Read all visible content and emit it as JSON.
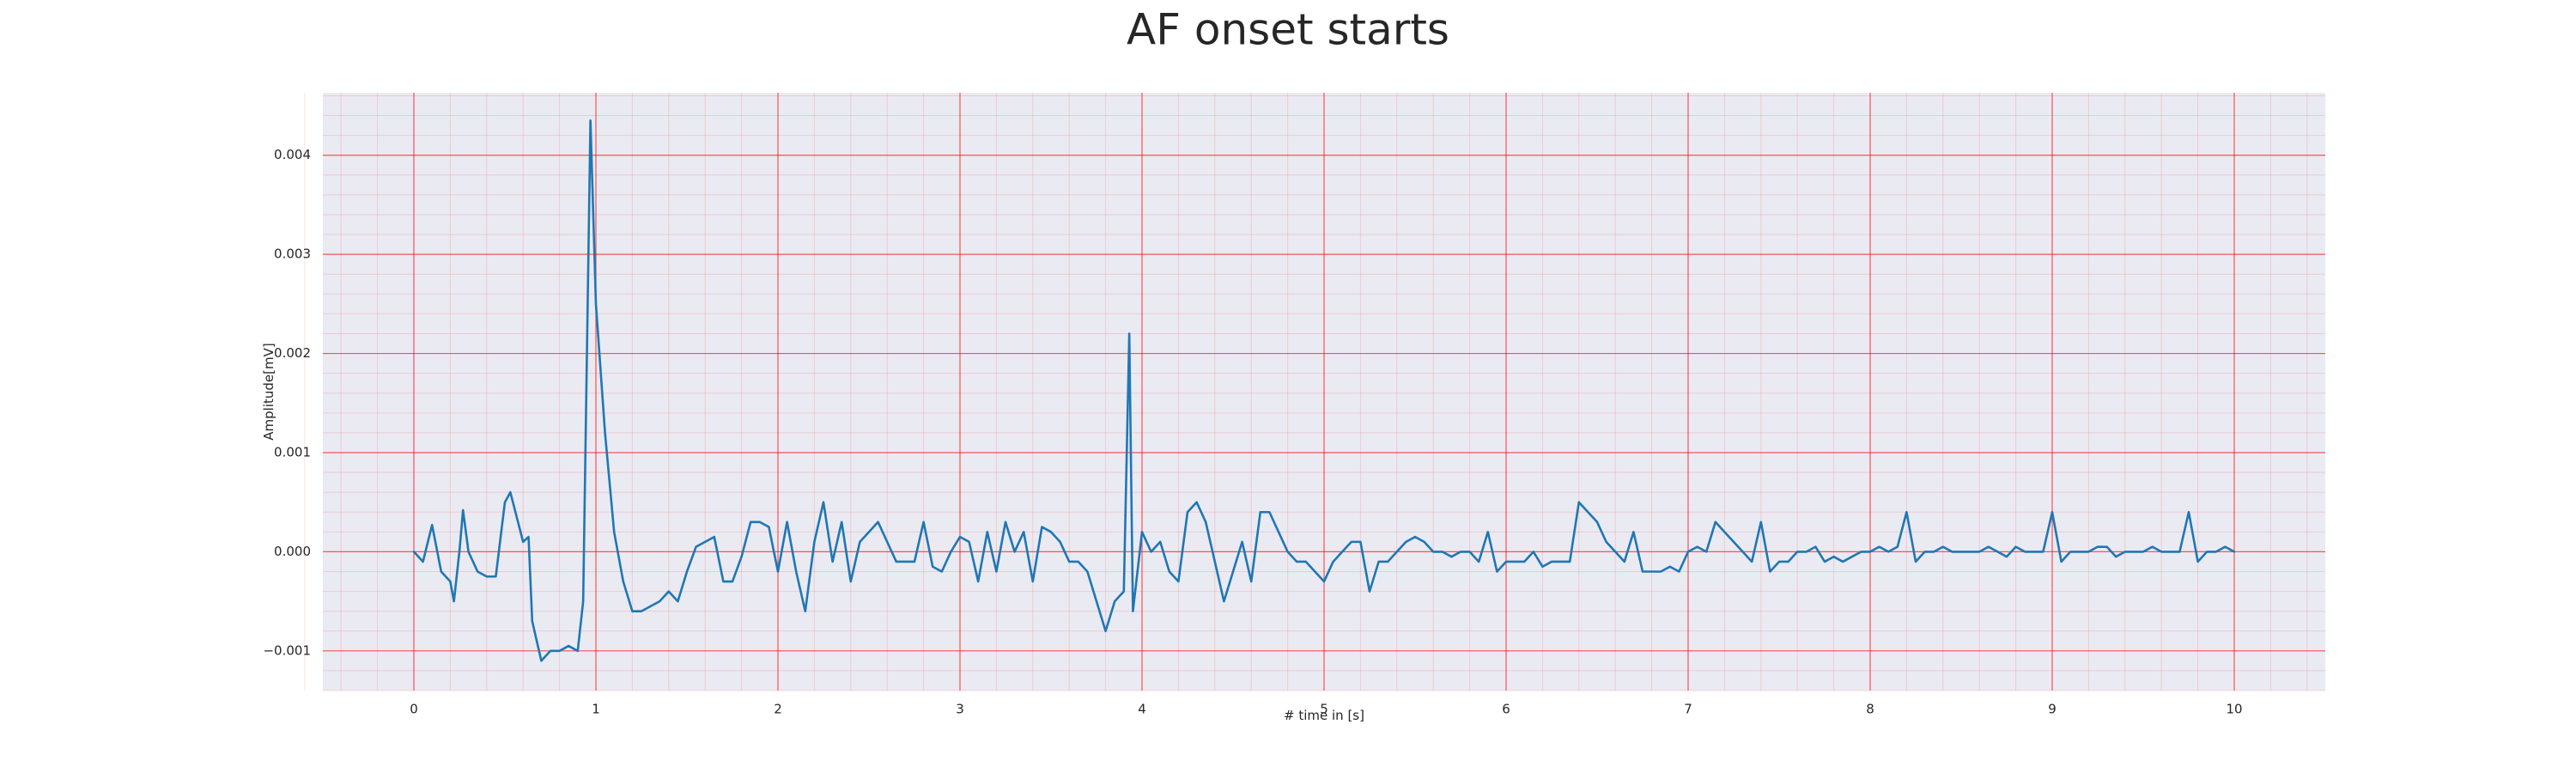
{
  "chart_data": {
    "type": "line",
    "title": "AF onset starts",
    "x_label": "# time in [s]",
    "y_label": "Amplitude[mV]",
    "xlim": [
      -0.5,
      10.5
    ],
    "ylim": [
      -0.0014,
      0.00463
    ],
    "xticks": [
      0,
      1,
      2,
      3,
      4,
      5,
      6,
      7,
      8,
      9,
      10
    ],
    "yticks": [
      {
        "value": -0.001,
        "label": "−0.001"
      },
      {
        "value": 0,
        "label": "0.000"
      },
      {
        "value": 0.001,
        "label": "0.001"
      },
      {
        "value": 0.002,
        "label": "0.002"
      },
      {
        "value": 0.003,
        "label": "0.003"
      },
      {
        "value": 0.004,
        "label": "0.004"
      }
    ],
    "grid": true,
    "grid_color": "#ff0000",
    "background": "#eaeaf2",
    "series": [
      {
        "color": "#1f77b4",
        "x": [
          0,
          0.05,
          0.1,
          0.15,
          0.2,
          0.22,
          0.25,
          0.27,
          0.3,
          0.35,
          0.4,
          0.45,
          0.5,
          0.53,
          0.6,
          0.63,
          0.65,
          0.7,
          0.75,
          0.8,
          0.85,
          0.9,
          0.93,
          0.97,
          1,
          1.05,
          1.1,
          1.15,
          1.2,
          1.25,
          1.3,
          1.35,
          1.4,
          1.45,
          1.5,
          1.55,
          1.6,
          1.65,
          1.7,
          1.75,
          1.8,
          1.85,
          1.9,
          1.95,
          2,
          2.05,
          2.1,
          2.15,
          2.2,
          2.25,
          2.3,
          2.35,
          2.4,
          2.45,
          2.5,
          2.55,
          2.6,
          2.65,
          2.7,
          2.75,
          2.8,
          2.85,
          2.9,
          2.95,
          3,
          3.05,
          3.1,
          3.15,
          3.2,
          3.25,
          3.3,
          3.35,
          3.4,
          3.45,
          3.5,
          3.55,
          3.6,
          3.65,
          3.7,
          3.75,
          3.8,
          3.85,
          3.9,
          3.93,
          3.95,
          4,
          4.05,
          4.1,
          4.15,
          4.2,
          4.25,
          4.3,
          4.35,
          4.4,
          4.45,
          4.5,
          4.55,
          4.6,
          4.65,
          4.7,
          4.75,
          4.8,
          4.85,
          4.9,
          4.95,
          5,
          5.05,
          5.1,
          5.15,
          5.2,
          5.25,
          5.3,
          5.35,
          5.4,
          5.45,
          5.5,
          5.55,
          5.6,
          5.65,
          5.7,
          5.75,
          5.8,
          5.85,
          5.9,
          5.95,
          6,
          6.05,
          6.1,
          6.15,
          6.2,
          6.25,
          6.3,
          6.35,
          6.4,
          6.45,
          6.5,
          6.55,
          6.6,
          6.65,
          6.7,
          6.75,
          6.8,
          6.85,
          6.9,
          6.95,
          7,
          7.05,
          7.1,
          7.15,
          7.2,
          7.25,
          7.3,
          7.35,
          7.4,
          7.45,
          7.5,
          7.55,
          7.6,
          7.65,
          7.7,
          7.75,
          7.8,
          7.85,
          7.9,
          7.95,
          8,
          8.05,
          8.1,
          8.15,
          8.2,
          8.25,
          8.3,
          8.35,
          8.4,
          8.45,
          8.5,
          8.55,
          8.6,
          8.65,
          8.7,
          8.75,
          8.8,
          8.85,
          8.9,
          8.95,
          9,
          9.05,
          9.1,
          9.15,
          9.2,
          9.25,
          9.3,
          9.35,
          9.4,
          9.45,
          9.5,
          9.55,
          9.6,
          9.65,
          9.7,
          9.75,
          9.8,
          9.85,
          9.9,
          9.95,
          10
        ],
        "values": [
          0,
          -0.0001,
          0.00027,
          -0.0002,
          -0.0003,
          -0.0005,
          0,
          0.00042,
          0,
          -0.0002,
          -0.00025,
          -0.00025,
          0.0005,
          0.0006,
          0.0001,
          0.00015,
          -0.0007,
          -0.0011,
          -0.001,
          -0.001,
          -0.00095,
          -0.001,
          -0.0005,
          0.00435,
          0.0025,
          0.0012,
          0.0002,
          -0.0003,
          -0.0006,
          -0.0006,
          -0.00055,
          -0.0005,
          -0.0004,
          -0.0005,
          -0.0002,
          5e-05,
          0.0001,
          0.00015,
          -0.0003,
          -0.0003,
          -5e-05,
          0.0003,
          0.0003,
          0.00025,
          -0.0002,
          0.0003,
          -0.0002,
          -0.0006,
          0.0001,
          0.0005,
          -0.0001,
          0.0003,
          -0.0003,
          0.0001,
          0.0002,
          0.0003,
          0.0001,
          -0.0001,
          -0.0001,
          -0.0001,
          0.0003,
          -0.00015,
          -0.0002,
          0,
          0.00015,
          0.0001,
          -0.0003,
          0.0002,
          -0.0002,
          0.0003,
          0,
          0.0002,
          -0.0003,
          0.00025,
          0.0002,
          0.0001,
          -0.0001,
          -0.0001,
          -0.0002,
          -0.0005,
          -0.0008,
          -0.0005,
          -0.0004,
          0.0022,
          -0.0006,
          0.0002,
          0,
          0.0001,
          -0.0002,
          -0.0003,
          0.0004,
          0.0005,
          0.0003,
          -0.0001,
          -0.0005,
          -0.0002,
          0.0001,
          -0.0003,
          0.0004,
          0.0004,
          0.0002,
          0,
          -0.0001,
          -0.0001,
          -0.0002,
          -0.0003,
          -0.0001,
          0,
          0.0001,
          0.0001,
          -0.0004,
          -0.0001,
          -0.0001,
          0,
          0.0001,
          0.00015,
          0.0001,
          0,
          0,
          -5e-05,
          0,
          0,
          -0.0001,
          0.0002,
          -0.0002,
          -0.0001,
          -0.0001,
          -0.0001,
          0,
          -0.00015,
          -0.0001,
          -0.0001,
          -0.0001,
          0.0005,
          0.0004,
          0.0003,
          0.0001,
          0,
          -0.0001,
          0.0002,
          -0.0002,
          -0.0002,
          -0.0002,
          -0.00015,
          -0.0002,
          0,
          5e-05,
          0,
          0.0003,
          0.0002,
          0.0001,
          0,
          -0.0001,
          0.0003,
          -0.0002,
          -0.0001,
          -0.0001,
          0,
          0,
          5e-05,
          -0.0001,
          -5e-05,
          -0.0001,
          -5e-05,
          0,
          0,
          5e-05,
          0,
          5e-05,
          0.0004,
          -0.0001,
          0,
          0,
          5e-05,
          0,
          0,
          0,
          0,
          5e-05,
          0,
          -5e-05,
          5e-05,
          0,
          0,
          0,
          0.0004,
          -0.0001,
          0,
          0,
          0,
          5e-05,
          5e-05,
          -5e-05,
          0,
          0,
          0,
          5e-05,
          0,
          0,
          0,
          0.0004,
          -0.0001,
          0,
          0,
          5e-05,
          0
        ]
      }
    ]
  }
}
